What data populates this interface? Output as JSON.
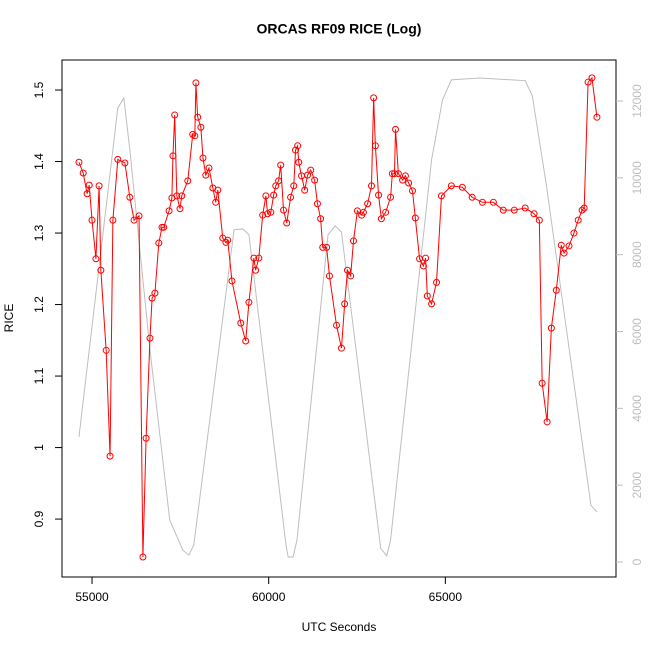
{
  "chart_data": {
    "type": "line",
    "title": "ORCAS RF09 RICE (Log)",
    "x_label": "UTC Seconds",
    "y_label": "RICE",
    "xlim": [
      54150,
      69830
    ],
    "xticks": [
      55000,
      60000,
      65000,
      70000
    ],
    "ylim": [
      0.819,
      1.542
    ],
    "yticks": [
      0.9,
      1.0,
      1.1,
      1.2,
      1.3,
      1.4,
      1.5
    ],
    "y2lim": [
      -390,
      13068
    ],
    "y2ticks": [
      0,
      2000,
      4000,
      6000,
      8000,
      10000,
      12000
    ],
    "series": [
      {
        "color": "#ff0000",
        "markers": true,
        "x": [
          54630,
          54750,
          54860,
          54920,
          55000,
          55110,
          55200,
          55250,
          55400,
          55510,
          55590,
          55730,
          55930,
          56070,
          56190,
          56330,
          56440,
          56530,
          56640,
          56700,
          56780,
          56890,
          56980,
          57030,
          57180,
          57260,
          57290,
          57340,
          57400,
          57490,
          57540,
          57710,
          57850,
          57910,
          57940,
          57990,
          58080,
          58140,
          58220,
          58310,
          58420,
          58500,
          58560,
          58700,
          58790,
          58840,
          58960,
          59210,
          59350,
          59440,
          59580,
          59630,
          59720,
          59830,
          59920,
          59970,
          60060,
          60140,
          60200,
          60280,
          60340,
          60420,
          60510,
          60620,
          60710,
          60760,
          60820,
          60850,
          60930,
          61020,
          61100,
          61190,
          61300,
          61380,
          61470,
          61530,
          61640,
          61720,
          61920,
          62060,
          62150,
          62230,
          62320,
          62400,
          62510,
          62630,
          62680,
          62800,
          62910,
          62970,
          63020,
          63110,
          63190,
          63310,
          63450,
          63500,
          63560,
          63590,
          63670,
          63790,
          63870,
          63960,
          64070,
          64150,
          64270,
          64380,
          64440,
          64490,
          64610,
          64750,
          64890,
          65170,
          65480,
          65760,
          66050,
          66360,
          66640,
          66950,
          67260,
          67510,
          67660,
          67740,
          67880,
          68000,
          68140,
          68280,
          68360,
          68500,
          68640,
          68760,
          68870,
          68930,
          69040,
          69150,
          69290
        ],
        "values": [
          1.399,
          1.384,
          1.355,
          1.367,
          1.318,
          1.264,
          1.366,
          1.248,
          1.136,
          0.988,
          1.318,
          1.403,
          1.398,
          1.35,
          1.318,
          1.324,
          0.847,
          1.013,
          1.153,
          1.209,
          1.216,
          1.286,
          1.308,
          1.308,
          1.331,
          1.349,
          1.408,
          1.465,
          1.352,
          1.334,
          1.352,
          1.373,
          1.438,
          1.436,
          1.51,
          1.462,
          1.448,
          1.405,
          1.381,
          1.391,
          1.363,
          1.343,
          1.36,
          1.293,
          1.287,
          1.29,
          1.233,
          1.174,
          1.149,
          1.203,
          1.265,
          1.248,
          1.265,
          1.325,
          1.352,
          1.327,
          1.329,
          1.353,
          1.366,
          1.373,
          1.395,
          1.332,
          1.314,
          1.35,
          1.366,
          1.416,
          1.422,
          1.399,
          1.38,
          1.36,
          1.381,
          1.388,
          1.374,
          1.341,
          1.32,
          1.28,
          1.28,
          1.24,
          1.171,
          1.139,
          1.201,
          1.248,
          1.24,
          1.289,
          1.331,
          1.325,
          1.329,
          1.341,
          1.366,
          1.489,
          1.422,
          1.353,
          1.32,
          1.329,
          1.35,
          1.383,
          1.383,
          1.445,
          1.383,
          1.374,
          1.38,
          1.37,
          1.359,
          1.321,
          1.264,
          1.254,
          1.265,
          1.212,
          1.201,
          1.231,
          1.352,
          1.366,
          1.364,
          1.35,
          1.343,
          1.343,
          1.332,
          1.332,
          1.335,
          1.327,
          1.318,
          1.09,
          1.036,
          1.167,
          1.22,
          1.283,
          1.272,
          1.282,
          1.3,
          1.318,
          1.332,
          1.335,
          1.511,
          1.517,
          1.462
        ]
      },
      {
        "color": "#bebebe",
        "markers": false,
        "axis": "y2",
        "x": [
          54630,
          55730,
          55900,
          56070,
          56640,
          57200,
          57570,
          57740,
          57880,
          59020,
          59270,
          59440,
          60490,
          60550,
          60690,
          60800,
          61680,
          61880,
          62060,
          63170,
          63340,
          63450,
          64610,
          64920,
          65170,
          65960,
          67260,
          67460,
          67850,
          69120,
          69290
        ],
        "values": [
          3255,
          11820,
          12080,
          10730,
          5520,
          1090,
          310,
          180,
          440,
          8650,
          8670,
          8520,
          440,
          130,
          130,
          570,
          8520,
          8750,
          8590,
          360,
          160,
          570,
          10470,
          12030,
          12550,
          12600,
          12530,
          12140,
          9870,
          1480,
          1300
        ]
      }
    ]
  }
}
